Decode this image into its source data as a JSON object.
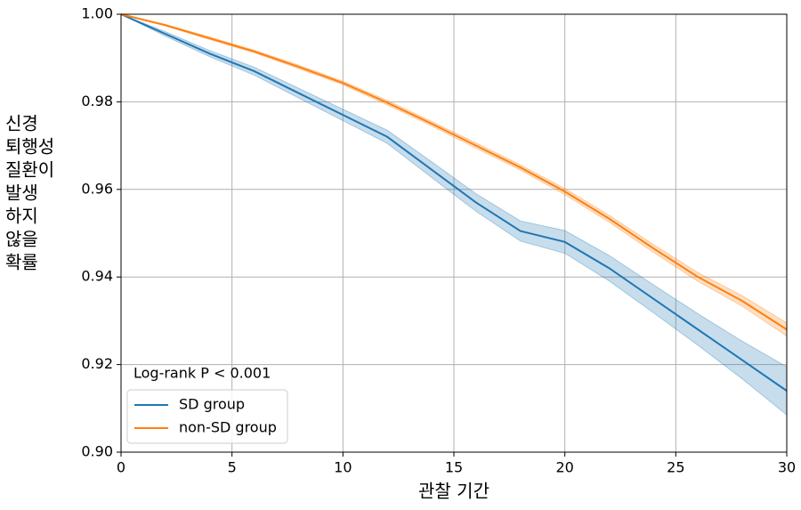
{
  "chart_data": {
    "type": "line",
    "ylabel": [
      "신경",
      "퇴행성",
      "질환이",
      "발생",
      "하지",
      "않을",
      "확률"
    ],
    "xlabel": "관찰 기간",
    "annotation": "Log-rank P < 0.001",
    "x": [
      0,
      2,
      4,
      6,
      8,
      10,
      12,
      14,
      16,
      18,
      20,
      22,
      24,
      26,
      28,
      30
    ],
    "series": [
      {
        "name": "SD group",
        "color": "#1f77b4",
        "values": [
          1,
          0.9955,
          0.991,
          0.987,
          0.982,
          0.977,
          0.972,
          0.9645,
          0.957,
          0.9505,
          0.948,
          0.942,
          0.935,
          0.928,
          0.921,
          0.914
        ],
        "lower": [
          1,
          0.995,
          0.9903,
          0.9861,
          0.9809,
          0.9757,
          0.9705,
          0.9627,
          0.955,
          0.9482,
          0.9454,
          0.9391,
          0.9318,
          0.9244,
          0.9167,
          0.9085
        ],
        "upper": [
          1,
          0.996,
          0.9917,
          0.9879,
          0.9831,
          0.9783,
          0.9735,
          0.9663,
          0.959,
          0.9528,
          0.9506,
          0.9449,
          0.9382,
          0.9316,
          0.9253,
          0.9195
        ]
      },
      {
        "name": "non-SD group",
        "color": "#ff7f0e",
        "values": [
          1,
          0.9975,
          0.9945,
          0.9915,
          0.988,
          0.9843,
          0.9798,
          0.975,
          0.97,
          0.965,
          0.9595,
          0.9533,
          0.9465,
          0.94,
          0.9345,
          0.928
        ],
        "lower": [
          1,
          0.9973,
          0.9942,
          0.9912,
          0.9876,
          0.9839,
          0.9793,
          0.9745,
          0.9694,
          0.9644,
          0.9588,
          0.9525,
          0.9456,
          0.939,
          0.9333,
          0.9265
        ],
        "upper": [
          1,
          0.9977,
          0.9948,
          0.9918,
          0.9884,
          0.9847,
          0.9803,
          0.9755,
          0.9706,
          0.9656,
          0.9602,
          0.9541,
          0.9474,
          0.941,
          0.9357,
          0.9295
        ]
      }
    ],
    "xlim": [
      0,
      30
    ],
    "xticks": [
      0,
      5,
      10,
      15,
      20,
      25,
      30
    ],
    "ylim": [
      0.9,
      1.0
    ],
    "yticks": [
      {
        "value": 0.9,
        "label": "0.90"
      },
      {
        "value": 0.92,
        "label": "0.92"
      },
      {
        "value": 0.94,
        "label": "0.94"
      },
      {
        "value": 0.96,
        "label": "0.96"
      },
      {
        "value": 0.98,
        "label": "0.98"
      },
      {
        "value": 1.0,
        "label": "1.00"
      }
    ],
    "grid": true,
    "legend": "lower left"
  }
}
